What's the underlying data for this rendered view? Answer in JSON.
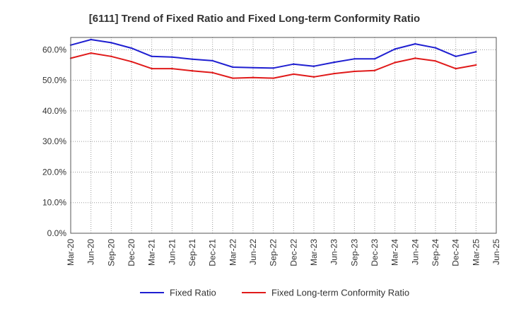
{
  "chart_data": {
    "type": "line",
    "title": "[6111]  Trend of Fixed Ratio and Fixed Long-term Conformity Ratio",
    "xlabel": "",
    "ylabel": "",
    "categories": [
      "Mar-20",
      "Jun-20",
      "Sep-20",
      "Dec-20",
      "Mar-21",
      "Jun-21",
      "Sep-21",
      "Dec-21",
      "Mar-22",
      "Jun-22",
      "Sep-22",
      "Dec-22",
      "Mar-23",
      "Jun-23",
      "Sep-23",
      "Dec-23",
      "Mar-24",
      "Jun-24",
      "Sep-24",
      "Dec-24",
      "Mar-25",
      "Jun-25"
    ],
    "y_ticks": [
      "0.0%",
      "10.0%",
      "20.0%",
      "30.0%",
      "40.0%",
      "50.0%",
      "60.0%"
    ],
    "ylim": [
      0,
      64
    ],
    "grid": true,
    "legend_position": "bottom",
    "series": [
      {
        "name": "Fixed Ratio",
        "color": "#1f1fd1",
        "values": [
          61.5,
          63.3,
          62.3,
          60.5,
          57.8,
          57.6,
          56.9,
          56.4,
          54.3,
          54.1,
          54.0,
          55.3,
          54.6,
          55.9,
          57.0,
          57.0,
          60.2,
          61.9,
          60.6,
          57.8,
          59.3,
          null
        ]
      },
      {
        "name": "Fixed Long-term Conformity Ratio",
        "color": "#e01a1a",
        "values": [
          57.2,
          58.9,
          57.8,
          56.1,
          53.8,
          53.8,
          53.1,
          52.5,
          50.7,
          50.9,
          50.7,
          52.0,
          51.1,
          52.2,
          52.9,
          53.2,
          55.8,
          57.2,
          56.3,
          53.8,
          55.0,
          null
        ]
      }
    ]
  }
}
